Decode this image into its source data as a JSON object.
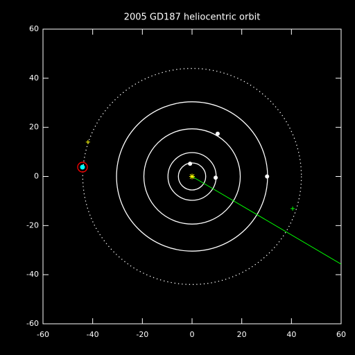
{
  "chart_data": {
    "type": "orbit",
    "title": "2005 GD187 heliocentric orbit",
    "xlim": [
      -60,
      60
    ],
    "ylim": [
      -60,
      60
    ],
    "xticks": [
      -60,
      -40,
      -20,
      0,
      20,
      40,
      60
    ],
    "yticks": [
      -60,
      -40,
      -20,
      0,
      20,
      40,
      60
    ],
    "orbits": {
      "radius": [
        5.5,
        9.7,
        19.4,
        30.4
      ],
      "color": "#ffffff"
    },
    "object_orbit": {
      "radius": 44,
      "color": "#ffffff",
      "dotted": true
    },
    "planets": {
      "x": [
        -0.8,
        9.5,
        10.3,
        30.2
      ],
      "y": [
        5.2,
        -0.5,
        17.4,
        0
      ],
      "color": "#ffffff"
    },
    "object": {
      "x": -44.1,
      "y": 3.8,
      "color": "#00ffff",
      "ring_color": "#ff0000"
    },
    "sun": {
      "x": 0,
      "y": 0,
      "color": "#ffff00"
    },
    "markers": [
      {
        "x": -41.9,
        "y": 14,
        "color": "#ffff00"
      },
      {
        "x": 40.5,
        "y": -13.1,
        "color": "#00ff00"
      }
    ],
    "line": {
      "x": [
        0,
        60
      ],
      "y": [
        0,
        -35.7
      ],
      "color": "#00ff00"
    }
  }
}
